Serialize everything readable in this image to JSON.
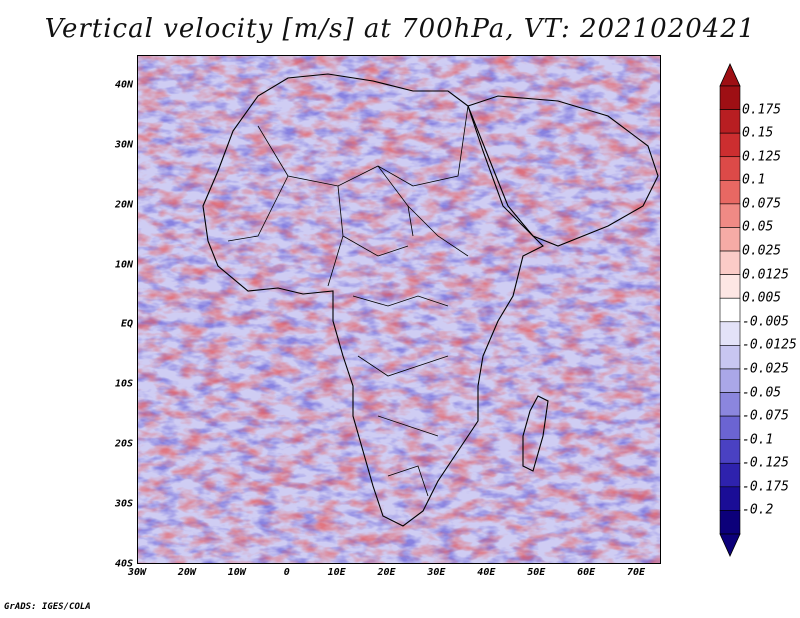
{
  "title": "Vertical velocity [m/s] at 700hPa, VT: 2021020421",
  "footer": "GrADS: IGES/COLA",
  "map": {
    "region": "Africa",
    "lon_range": [
      -30,
      75
    ],
    "lat_range": [
      -40,
      45
    ],
    "x_ticks": [
      "30W",
      "20W",
      "10W",
      "0",
      "10E",
      "20E",
      "30E",
      "40E",
      "50E",
      "60E",
      "70E"
    ],
    "y_ticks": [
      "40N",
      "30N",
      "20N",
      "10N",
      "EQ",
      "10S",
      "20S",
      "30S",
      "40S"
    ],
    "x_tick_lons": [
      -30,
      -20,
      -10,
      0,
      10,
      20,
      30,
      40,
      50,
      60,
      70
    ],
    "y_tick_lats": [
      40,
      30,
      20,
      10,
      0,
      -10,
      -20,
      -30,
      -40
    ]
  },
  "colorbar": {
    "labels": [
      "0.175",
      "0.15",
      "0.125",
      "0.1",
      "0.075",
      "0.05",
      "0.025",
      "0.0125",
      "0.005",
      "-0.005",
      "-0.0125",
      "-0.025",
      "-0.05",
      "-0.075",
      "-0.1",
      "-0.125",
      "-0.175",
      "-0.2"
    ],
    "colors": [
      "#9e0f14",
      "#b81e22",
      "#cc2e30",
      "#dc4a48",
      "#e86863",
      "#f08a85",
      "#f6aba6",
      "#fbcbc7",
      "#fde6e4",
      "#ffffff",
      "#e3e2f8",
      "#c8c6f1",
      "#aaa7e8",
      "#8b86de",
      "#6b64d2",
      "#4a41c2",
      "#2e22ad",
      "#1a0d96",
      "#0c007a"
    ]
  }
}
